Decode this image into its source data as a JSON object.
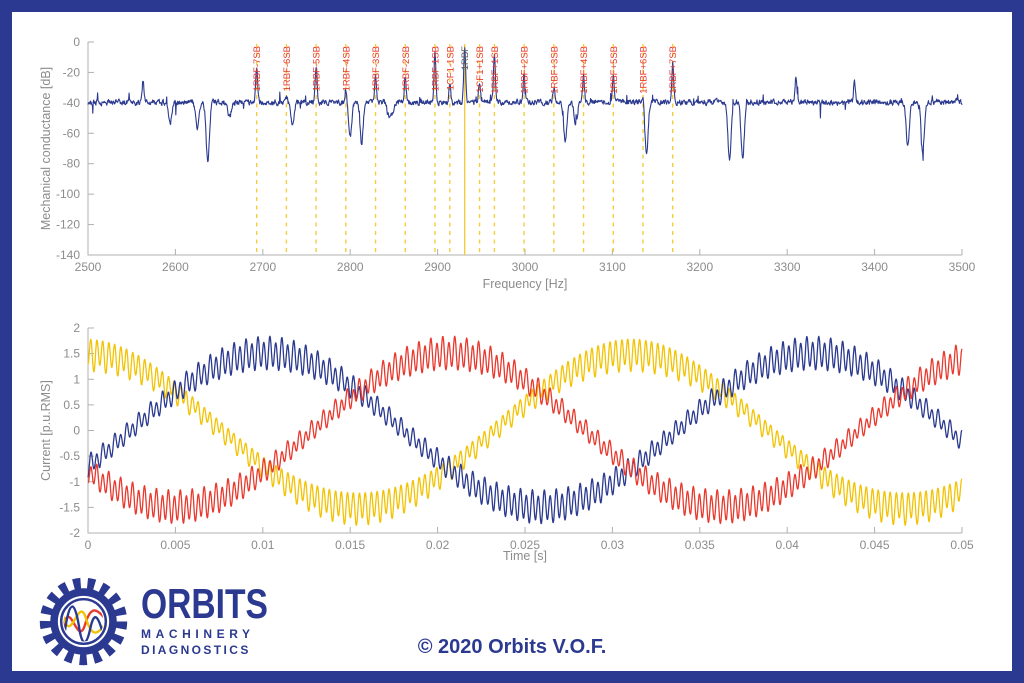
{
  "frame": {
    "border_color": "#2b3990",
    "background": "#ffffff"
  },
  "logo": {
    "name": "ORBITS",
    "line2": "MACHINERY",
    "line3": "DIAGNOSTICS",
    "gear_color": "#2b3990",
    "wave_colors": [
      "#e8392e",
      "#f2c304",
      "#2b3990"
    ]
  },
  "footer": {
    "copyright": "© 2020 Orbits V.O.F."
  },
  "chart_data": [
    {
      "id": "spectrum",
      "type": "line",
      "title": "",
      "xlabel": "Frequency [Hz]",
      "ylabel": "Mechanical conductance [dB]",
      "xlim": [
        2500,
        3500
      ],
      "ylim": [
        -140,
        0
      ],
      "xticks": [
        2500,
        2600,
        2700,
        2800,
        2900,
        3000,
        3100,
        3200,
        3300,
        3400,
        3500
      ],
      "yticks": [
        0,
        -20,
        -40,
        -60,
        -80,
        -100,
        -120,
        -140
      ],
      "grid": false,
      "legend": "none",
      "line_color": "#2b3a8f",
      "baseline_db": -40,
      "marker_line_color": "#f3cd3f",
      "label_color": "#e8392e",
      "markers": [
        {
          "label": "1RBF-7SB",
          "freq": 2693,
          "style": "dashed",
          "peak_db": -17
        },
        {
          "label": "1RBF-6SB",
          "freq": 2727,
          "style": "dashed",
          "peak_db": -36
        },
        {
          "label": "1RBF-5SB",
          "freq": 2761,
          "style": "dashed",
          "peak_db": -16
        },
        {
          "label": "1RBF-4SB",
          "freq": 2795,
          "style": "dashed",
          "peak_db": -31
        },
        {
          "label": "1RBF-3SB",
          "freq": 2829,
          "style": "dashed",
          "peak_db": -24
        },
        {
          "label": "1RBF-2SB",
          "freq": 2863,
          "style": "dashed",
          "peak_db": -24
        },
        {
          "label": "1RBF-1SB",
          "freq": 2897,
          "style": "dashed",
          "peak_db": -7
        },
        {
          "label": "1CF1-1SB",
          "freq": 2914,
          "style": "dashed",
          "peak_db": -28
        },
        {
          "label": "1RBF",
          "freq": 2931,
          "style": "solid",
          "peak_db": -4,
          "label_color": "#5f5f5f"
        },
        {
          "label": "1CF1+1SB",
          "freq": 2948,
          "style": "dashed",
          "peak_db": -27
        },
        {
          "label": "1RBF+1SB",
          "freq": 2965,
          "style": "dashed",
          "peak_db": -9
        },
        {
          "label": "1RBF+2SB",
          "freq": 2999,
          "style": "dashed",
          "peak_db": -21
        },
        {
          "label": "1RBF+3SB",
          "freq": 3033,
          "style": "dashed",
          "peak_db": -30
        },
        {
          "label": "1RBF+4SB",
          "freq": 3067,
          "style": "dashed",
          "peak_db": -22
        },
        {
          "label": "1RBF+5SB",
          "freq": 3101,
          "style": "dashed",
          "peak_db": -22
        },
        {
          "label": "1RBF+6SB",
          "freq": 3135,
          "style": "dashed",
          "peak_db": -34
        },
        {
          "label": "1RBF+7SB",
          "freq": 3169,
          "style": "dashed",
          "peak_db": -15
        }
      ],
      "extra_peaks": [
        {
          "freq": 2563,
          "db": -26
        },
        {
          "freq": 3310,
          "db": -22
        },
        {
          "freq": 3377,
          "db": -26
        }
      ],
      "dips": [
        {
          "freq": 2594,
          "db": -54
        },
        {
          "freq": 2625,
          "db": -56
        },
        {
          "freq": 2637,
          "db": -79
        },
        {
          "freq": 2662,
          "db": -50
        },
        {
          "freq": 2734,
          "db": -55
        },
        {
          "freq": 2800,
          "db": -63
        },
        {
          "freq": 2813,
          "db": -67
        },
        {
          "freq": 2846,
          "db": -49,
          "width": 4.5,
          "flat": true
        },
        {
          "freq": 3046,
          "db": -65
        },
        {
          "freq": 3058,
          "db": -54
        },
        {
          "freq": 3139,
          "db": -73
        },
        {
          "freq": 3234,
          "db": -77
        },
        {
          "freq": 3249,
          "db": -77
        },
        {
          "freq": 3438,
          "db": -69
        },
        {
          "freq": 3455,
          "db": -73
        }
      ]
    },
    {
      "id": "currents",
      "type": "line",
      "title": "",
      "xlabel": "Time [s]",
      "ylabel": "Current [p.u.RMS]",
      "xlim": [
        0,
        0.05
      ],
      "ylim": [
        -2,
        2
      ],
      "xticks": [
        0,
        0.005,
        0.01,
        0.015,
        0.02,
        0.025,
        0.03,
        0.035,
        0.04,
        0.045,
        0.05
      ],
      "yticks": [
        2,
        1.5,
        1,
        0.5,
        0,
        -0.5,
        -1,
        -1.5,
        -2
      ],
      "grid": false,
      "legend": "none",
      "fundamental_hz": 32,
      "amplitude": 1.5,
      "ripple": {
        "freq_hz": 2930,
        "base_amp": 0.15,
        "mod_amp": 0.13,
        "sub_amp": 0.07
      },
      "series": [
        {
          "name": "phase-yellow",
          "color": "#f2c304",
          "phase_deg": 92
        },
        {
          "name": "phase-blue",
          "color": "#2b3a8f",
          "phase_deg": 332
        },
        {
          "name": "phase-red",
          "color": "#e8392e",
          "phase_deg": 212
        }
      ]
    }
  ]
}
